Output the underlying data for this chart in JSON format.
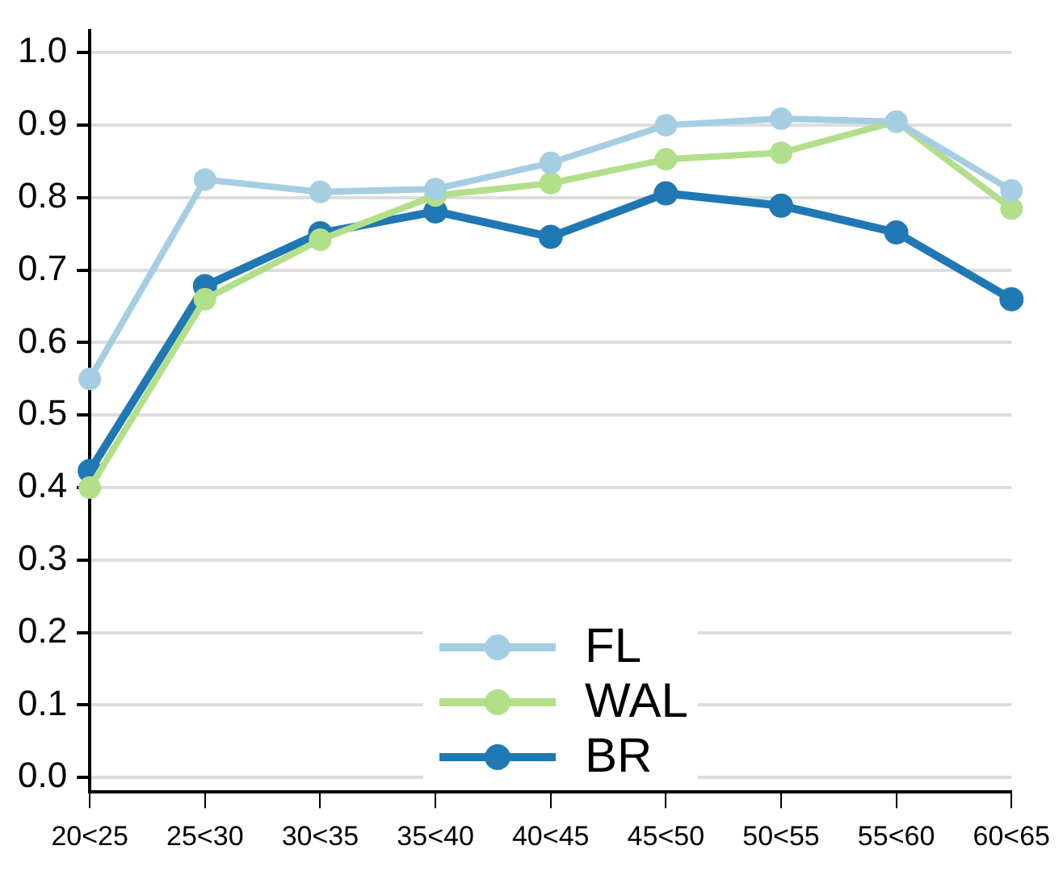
{
  "chart_data": {
    "type": "line",
    "categories": [
      "20<25",
      "25<30",
      "30<35",
      "35<40",
      "40<45",
      "45<50",
      "50<55",
      "55<60",
      "60<65"
    ],
    "series": [
      {
        "name": "FL",
        "color": "#a6cee3",
        "values": [
          0.55,
          0.825,
          0.808,
          0.812,
          0.848,
          0.9,
          0.909,
          0.905,
          0.81
        ]
      },
      {
        "name": "WAL",
        "color": "#b2df8a",
        "values": [
          0.4,
          0.66,
          0.742,
          0.803,
          0.82,
          0.853,
          0.862,
          0.905,
          0.785
        ]
      },
      {
        "name": "BR",
        "color": "#1f78b4",
        "values": [
          0.423,
          0.678,
          0.751,
          0.781,
          0.746,
          0.806,
          0.789,
          0.752,
          0.66
        ]
      }
    ],
    "ylim": [
      -0.02,
      1.03
    ],
    "yticks": [
      {
        "value": 0,
        "label": "0.0"
      },
      {
        "value": 0.1,
        "label": "0.1"
      },
      {
        "value": 0.2,
        "label": "0.2"
      },
      {
        "value": 0.3,
        "label": "0.3"
      },
      {
        "value": 0.4,
        "label": "0.4"
      },
      {
        "value": 0.5,
        "label": "0.5"
      },
      {
        "value": 0.6,
        "label": "0.6"
      },
      {
        "value": 0.7,
        "label": "0.7"
      },
      {
        "value": 0.8,
        "label": "0.8"
      },
      {
        "value": 0.9,
        "label": "0.9"
      },
      {
        "value": 1,
        "label": "1.0"
      }
    ],
    "grid": "y",
    "legend": "bottom",
    "marker": "circle",
    "line_style": "solid"
  }
}
